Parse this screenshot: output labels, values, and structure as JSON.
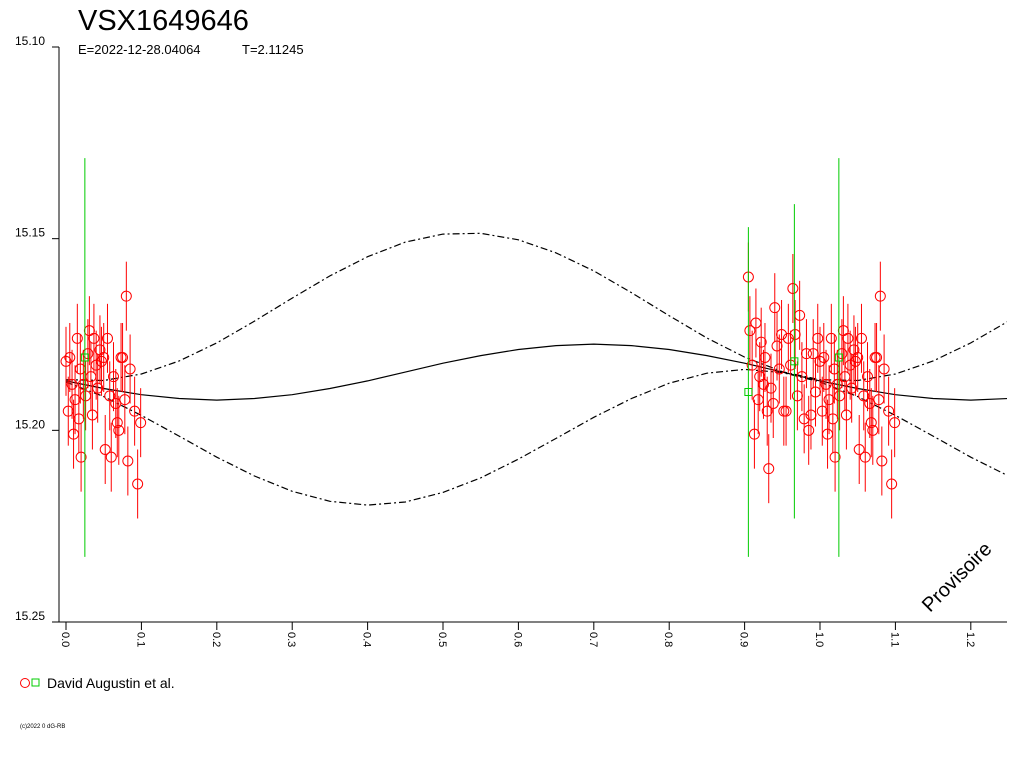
{
  "chart_data": {
    "type": "scatter",
    "title": "VSX1649646",
    "epoch": "E=2022-12-28.04064",
    "period": "T=2.11245",
    "watermark": "Provisoire",
    "copyright": "(c)2022 0 dG-RB",
    "legend_label": "David Augustin et al.",
    "xlim": [
      -0.0093,
      1.248
    ],
    "ylim": [
      15.1,
      15.25
    ],
    "y_inverted": true,
    "xticks": [
      {
        "value": 0,
        "label": "0.0"
      },
      {
        "value": 0.1,
        "label": "0.1"
      },
      {
        "value": 0.2,
        "label": "0.2"
      },
      {
        "value": 0.3,
        "label": "0.3"
      },
      {
        "value": 0.4,
        "label": "0.4"
      },
      {
        "value": 0.5,
        "label": "0.5"
      },
      {
        "value": 0.6,
        "label": "0.6"
      },
      {
        "value": 0.7,
        "label": "0.7"
      },
      {
        "value": 0.8,
        "label": "0.8"
      },
      {
        "value": 0.9,
        "label": "0.9"
      },
      {
        "value": 1.0,
        "label": "1.0"
      },
      {
        "value": 1.1,
        "label": "1.1"
      },
      {
        "value": 1.2,
        "label": "1.2"
      }
    ],
    "yticks": [
      {
        "value": 15.1,
        "label": "15.10"
      },
      {
        "value": 15.15,
        "label": "15.15"
      },
      {
        "value": 15.2,
        "label": "15.20"
      },
      {
        "value": 15.25,
        "label": "15.25"
      }
    ],
    "series": [
      {
        "marker": "circle",
        "color": "#ff0000",
        "error": 0.009,
        "x": [
          0.0,
          0.003,
          0.005,
          0.008,
          0.01,
          0.012,
          0.015,
          0.017,
          0.019,
          0.02,
          0.023,
          0.026,
          0.029,
          0.031,
          0.033,
          0.035,
          0.037,
          0.04,
          0.042,
          0.045,
          0.047,
          0.05,
          0.052,
          0.055,
          0.058,
          0.06,
          0.063,
          0.066,
          0.068,
          0.07,
          0.073,
          0.075,
          0.078,
          0.08,
          0.082,
          0.085,
          0.091,
          0.095,
          0.099,
          0.905,
          0.907,
          0.91,
          0.913,
          0.915,
          0.918,
          0.92,
          0.922,
          0.925,
          0.927,
          0.93,
          0.932,
          0.935,
          0.938,
          0.94,
          0.943,
          0.946,
          0.949,
          0.952,
          0.955,
          0.958,
          0.961,
          0.964,
          0.967,
          0.97,
          0.973,
          0.976,
          0.979,
          0.982,
          0.985,
          0.988,
          0.991,
          0.994,
          0.997,
          1.0,
          1.003,
          1.005,
          1.008,
          1.01,
          1.012,
          1.015,
          1.017,
          1.019,
          1.02,
          1.023,
          1.026,
          1.029,
          1.031,
          1.033,
          1.035,
          1.037,
          1.04,
          1.042,
          1.045,
          1.047,
          1.05,
          1.052,
          1.055,
          1.058,
          1.06,
          1.063,
          1.066,
          1.068,
          1.07,
          1.073,
          1.075,
          1.078,
          1.08,
          1.082,
          1.085,
          1.091,
          1.095,
          1.099
        ],
        "values": [
          15.182,
          15.195,
          15.181,
          15.188,
          15.201,
          15.192,
          15.176,
          15.197,
          15.184,
          15.207,
          15.188,
          15.191,
          15.18,
          15.174,
          15.186,
          15.196,
          15.176,
          15.183,
          15.189,
          15.179,
          15.182,
          15.181,
          15.205,
          15.176,
          15.191,
          15.207,
          15.186,
          15.193,
          15.198,
          15.2,
          15.181,
          15.181,
          15.192,
          15.165,
          15.208,
          15.184,
          15.195,
          15.214,
          15.198,
          15.16,
          15.174,
          15.183,
          15.201,
          15.172,
          15.192,
          15.186,
          15.177,
          15.188,
          15.181,
          15.195,
          15.21,
          15.189,
          15.193,
          15.168,
          15.178,
          15.184,
          15.175,
          15.195,
          15.195,
          15.176,
          15.183,
          15.163,
          15.175,
          15.191,
          15.17,
          15.186,
          15.197,
          15.18,
          15.2,
          15.196,
          15.18,
          15.19,
          15.176,
          15.182,
          15.195,
          15.181,
          15.188,
          15.201,
          15.192,
          15.176,
          15.197,
          15.184,
          15.207,
          15.188,
          15.191,
          15.18,
          15.174,
          15.186,
          15.196,
          15.176,
          15.183,
          15.189,
          15.179,
          15.182,
          15.181,
          15.205,
          15.176,
          15.191,
          15.207,
          15.186,
          15.193,
          15.198,
          15.2,
          15.181,
          15.181,
          15.192,
          15.165,
          15.208,
          15.184,
          15.195,
          15.214,
          15.198
        ]
      },
      {
        "marker": "square",
        "color": "#00cc00",
        "x": [
          0.025,
          0.905,
          0.966,
          1.025
        ],
        "values": [
          15.181,
          15.19,
          15.182,
          15.181
        ],
        "errors": [
          0.052,
          0.043,
          0.041,
          0.052
        ]
      }
    ],
    "curve_x": [
      0,
      0.05,
      0.1,
      0.15,
      0.2,
      0.25,
      0.3,
      0.35,
      0.4,
      0.45,
      0.5,
      0.55,
      0.6,
      0.65,
      0.7,
      0.75,
      0.8,
      0.85,
      0.9,
      0.95,
      1.0,
      1.05,
      1.1,
      1.15,
      1.2,
      1.25
    ],
    "curves": [
      {
        "style": "solid",
        "color": "#000000",
        "values": [
          15.1871,
          15.1891,
          15.1907,
          15.1917,
          15.1921,
          15.1917,
          15.1907,
          15.1891,
          15.1871,
          15.1848,
          15.1825,
          15.1805,
          15.1789,
          15.1779,
          15.1775,
          15.1779,
          15.1789,
          15.1805,
          15.1825,
          15.1848,
          15.1871,
          15.1891,
          15.1907,
          15.1917,
          15.1921,
          15.1917
        ]
      },
      {
        "style": "dashdot",
        "color": "#000000",
        "values": [
          15.1868,
          15.187,
          15.1853,
          15.1819,
          15.1772,
          15.1715,
          15.1655,
          15.1597,
          15.1547,
          15.1509,
          15.1488,
          15.1486,
          15.1503,
          15.1537,
          15.1584,
          15.1641,
          15.1701,
          15.1759,
          15.1809,
          15.1847,
          15.1868,
          15.187,
          15.1853,
          15.1819,
          15.1772,
          15.1715
        ]
      },
      {
        "style": "dashdot",
        "color": "#000000",
        "values": [
          15.1874,
          15.1912,
          15.1961,
          15.2015,
          15.207,
          15.2119,
          15.2159,
          15.2185,
          15.2195,
          15.2187,
          15.2162,
          15.2124,
          15.2075,
          15.2021,
          15.1966,
          15.1917,
          15.1877,
          15.1851,
          15.1841,
          15.1849,
          15.1874,
          15.1912,
          15.1961,
          15.2015,
          15.207,
          15.2119
        ]
      }
    ]
  }
}
